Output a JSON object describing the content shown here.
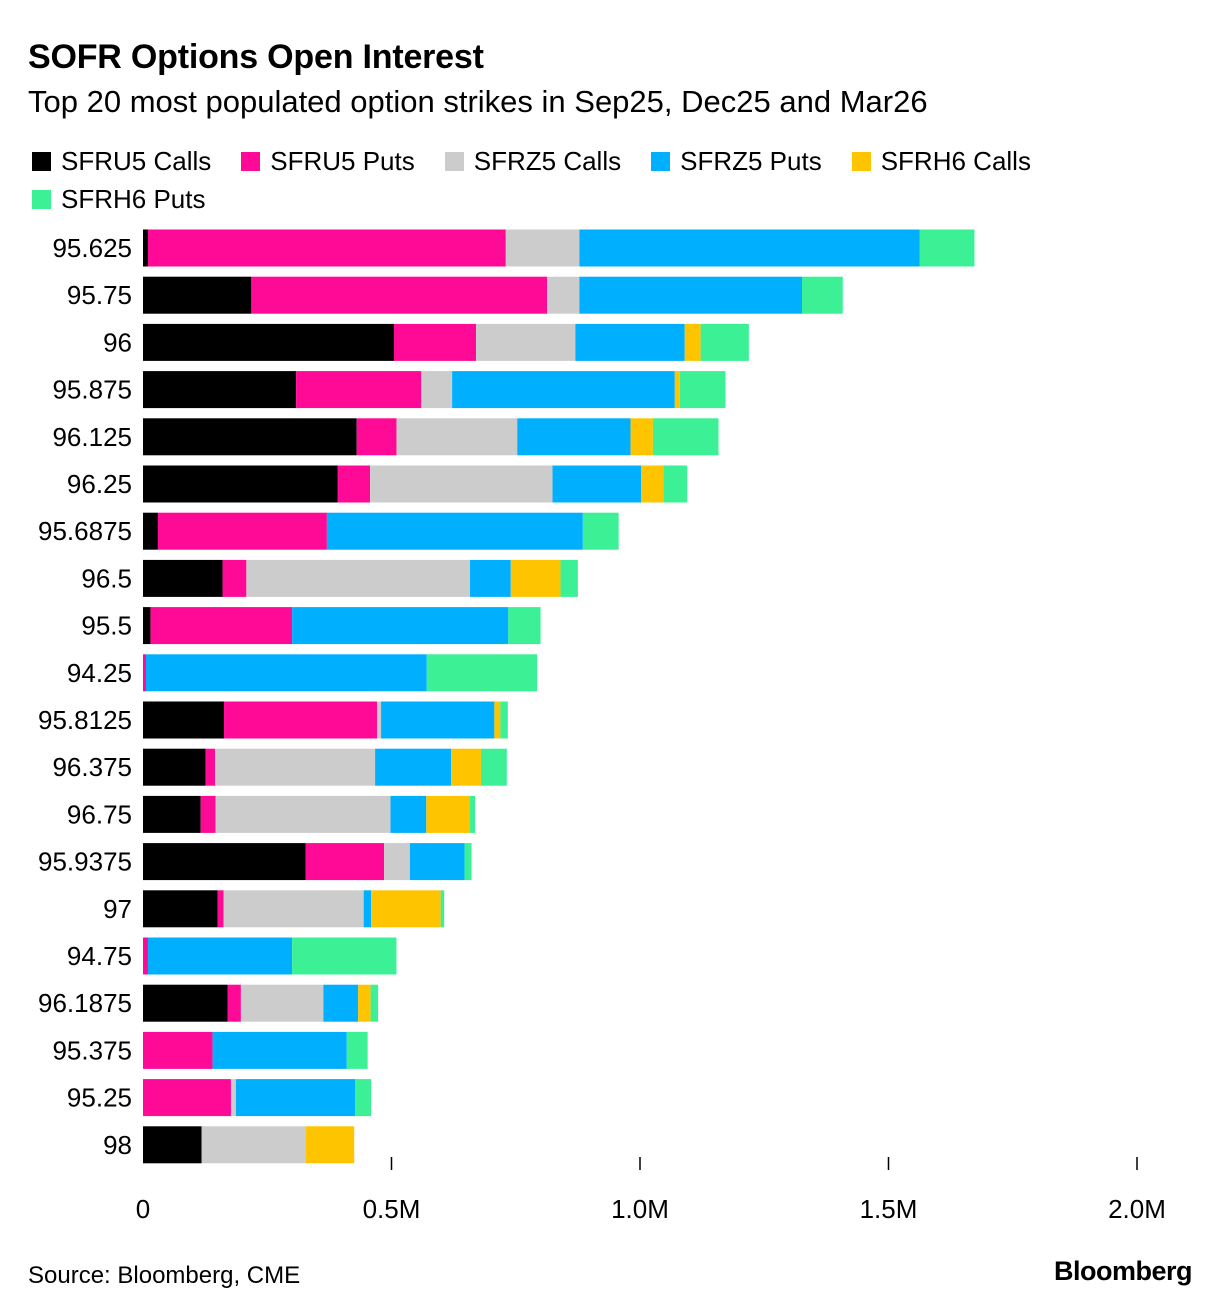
{
  "title": "SOFR Options Open Interest",
  "subtitle": "Top 20 most populated option strikes in Sep25, Dec25 and Mar26",
  "source": "Source: Bloomberg, CME",
  "brand": "Bloomberg",
  "chart_data": {
    "type": "bar",
    "orientation": "horizontal",
    "stacked": true,
    "title": "SOFR Options Open Interest",
    "subtitle": "Top 20 most populated option strikes in Sep25, Dec25 and Mar26",
    "xlabel": "",
    "ylabel": "",
    "xlim": [
      0,
      2000000
    ],
    "x_ticks": [
      0,
      500000,
      1000000,
      1500000,
      2000000
    ],
    "x_tick_labels": [
      "0",
      "0.5M",
      "1.0M",
      "1.5M",
      "2.0M"
    ],
    "legend_position": "top",
    "categories": [
      "95.625",
      "95.75",
      "96",
      "95.875",
      "96.125",
      "96.25",
      "95.6875",
      "96.5",
      "95.5",
      "94.25",
      "95.8125",
      "96.375",
      "96.75",
      "95.9375",
      "97",
      "94.75",
      "96.1875",
      "95.375",
      "95.25",
      "98"
    ],
    "series": [
      {
        "name": "SFRU5 Calls",
        "color": "#000000",
        "values": [
          10000,
          218000,
          505000,
          308000,
          430000,
          392000,
          30000,
          160000,
          15000,
          0,
          163000,
          126000,
          116000,
          327000,
          150000,
          0,
          170000,
          0,
          0,
          118000
        ]
      },
      {
        "name": "SFRU5 Puts",
        "color": "#ff0a96",
        "values": [
          720000,
          595000,
          165000,
          252000,
          80000,
          65000,
          340000,
          48000,
          285000,
          6000,
          308000,
          19000,
          30000,
          158000,
          12000,
          10000,
          27000,
          140000,
          177000,
          0
        ]
      },
      {
        "name": "SFRZ5 Calls",
        "color": "#cccccc",
        "values": [
          148000,
          65000,
          200000,
          62000,
          243000,
          367000,
          0,
          450000,
          0,
          0,
          8000,
          322000,
          352000,
          52000,
          282000,
          0,
          166000,
          0,
          10000,
          210000
        ]
      },
      {
        "name": "SFRZ5 Puts",
        "color": "#00b0ff",
        "values": [
          685000,
          448000,
          220000,
          448000,
          228000,
          178000,
          515000,
          82000,
          435000,
          565000,
          228000,
          153000,
          72000,
          110000,
          15000,
          290000,
          70000,
          270000,
          240000,
          0
        ]
      },
      {
        "name": "SFRH6 Calls",
        "color": "#ffc400",
        "values": [
          0,
          0,
          32000,
          10000,
          45000,
          45000,
          0,
          100000,
          0,
          0,
          12000,
          60000,
          88000,
          0,
          140000,
          0,
          25000,
          0,
          0,
          97000
        ]
      },
      {
        "name": "SFRH6 Puts",
        "color": "#3cf095",
        "values": [
          110000,
          82000,
          97000,
          92000,
          132000,
          48000,
          72000,
          35000,
          65000,
          222000,
          15000,
          52000,
          10000,
          14000,
          7000,
          210000,
          15000,
          42000,
          32000,
          0
        ]
      }
    ]
  }
}
